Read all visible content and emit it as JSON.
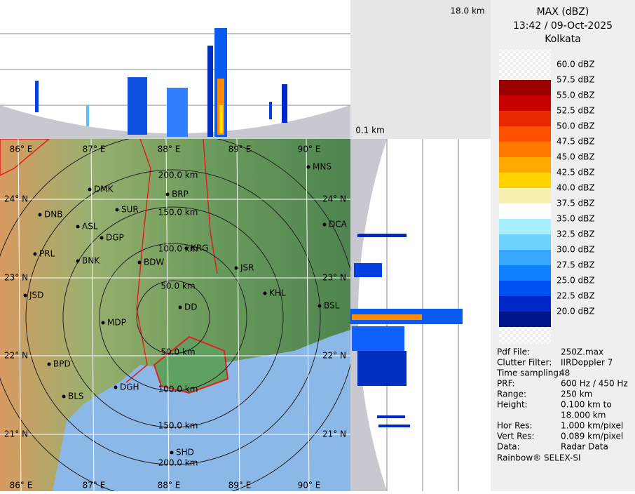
{
  "header": {
    "title": "MAX (dBZ)",
    "time": "13:42 / 09-Oct-2025",
    "station": "Kolkata"
  },
  "heights": {
    "top": "18.0 km",
    "bottom": "0.1 km"
  },
  "legend": {
    "labels": [
      "60.0 dBZ",
      "57.5 dBZ",
      "55.0 dBZ",
      "52.5 dBZ",
      "50.0 dBZ",
      "47.5 dBZ",
      "45.0 dBZ",
      "42.5 dBZ",
      "40.0 dBZ",
      "37.5 dBZ",
      "35.0 dBZ",
      "32.5 dBZ",
      "30.0 dBZ",
      "27.5 dBZ",
      "25.0 dBZ",
      "22.5 dBZ",
      "20.0 dBZ"
    ],
    "colors": [
      "#9b0000",
      "#c80000",
      "#e82800",
      "#ff5000",
      "#ff7800",
      "#ffaa00",
      "#ffd200",
      "#f7f0b0",
      "#ffffff",
      "#a8f0ff",
      "#6cd4ff",
      "#38a8ff",
      "#0f80ff",
      "#0050f0",
      "#0028c8",
      "#00148c"
    ]
  },
  "info": {
    "rows": [
      [
        "Pdf File:",
        "250Z.max"
      ],
      [
        "Clutter Filter:",
        "IIRDoppler 7"
      ],
      [
        "Time sampling:",
        "48"
      ],
      [
        "PRF:",
        "600 Hz / 450 Hz"
      ],
      [
        "Range:",
        "250 km"
      ],
      [
        "Height:",
        "0.100 km to",
        "18.000 km"
      ],
      [
        "Hor Res:",
        "1.000 km/pixel"
      ],
      [
        "Vert Res:",
        "0.089 km/pixel"
      ],
      [
        "Data:",
        "Radar Data"
      ]
    ],
    "footer": "Rainbow® SELEX-SI"
  },
  "map": {
    "lon_labels": [
      "86° E",
      "87° E",
      "88° E",
      "89° E",
      "90° E"
    ],
    "lat_labels": [
      "24° N",
      "23° N",
      "22° N",
      "21° N"
    ],
    "range_labels": [
      "50.0 km",
      "100.0 km",
      "150.0 km",
      "200.0 km"
    ],
    "cities": [
      "MNS",
      "DMK",
      "BRP",
      "SUR",
      "DNB",
      "ASL",
      "DGP",
      "DCA",
      "KRG",
      "PRL",
      "BNK",
      "BDW",
      "JSR",
      "KHL",
      "JSD",
      "DD",
      "BSL",
      "MDP",
      "BPD",
      "DGH",
      "BLS",
      "SHD"
    ]
  }
}
